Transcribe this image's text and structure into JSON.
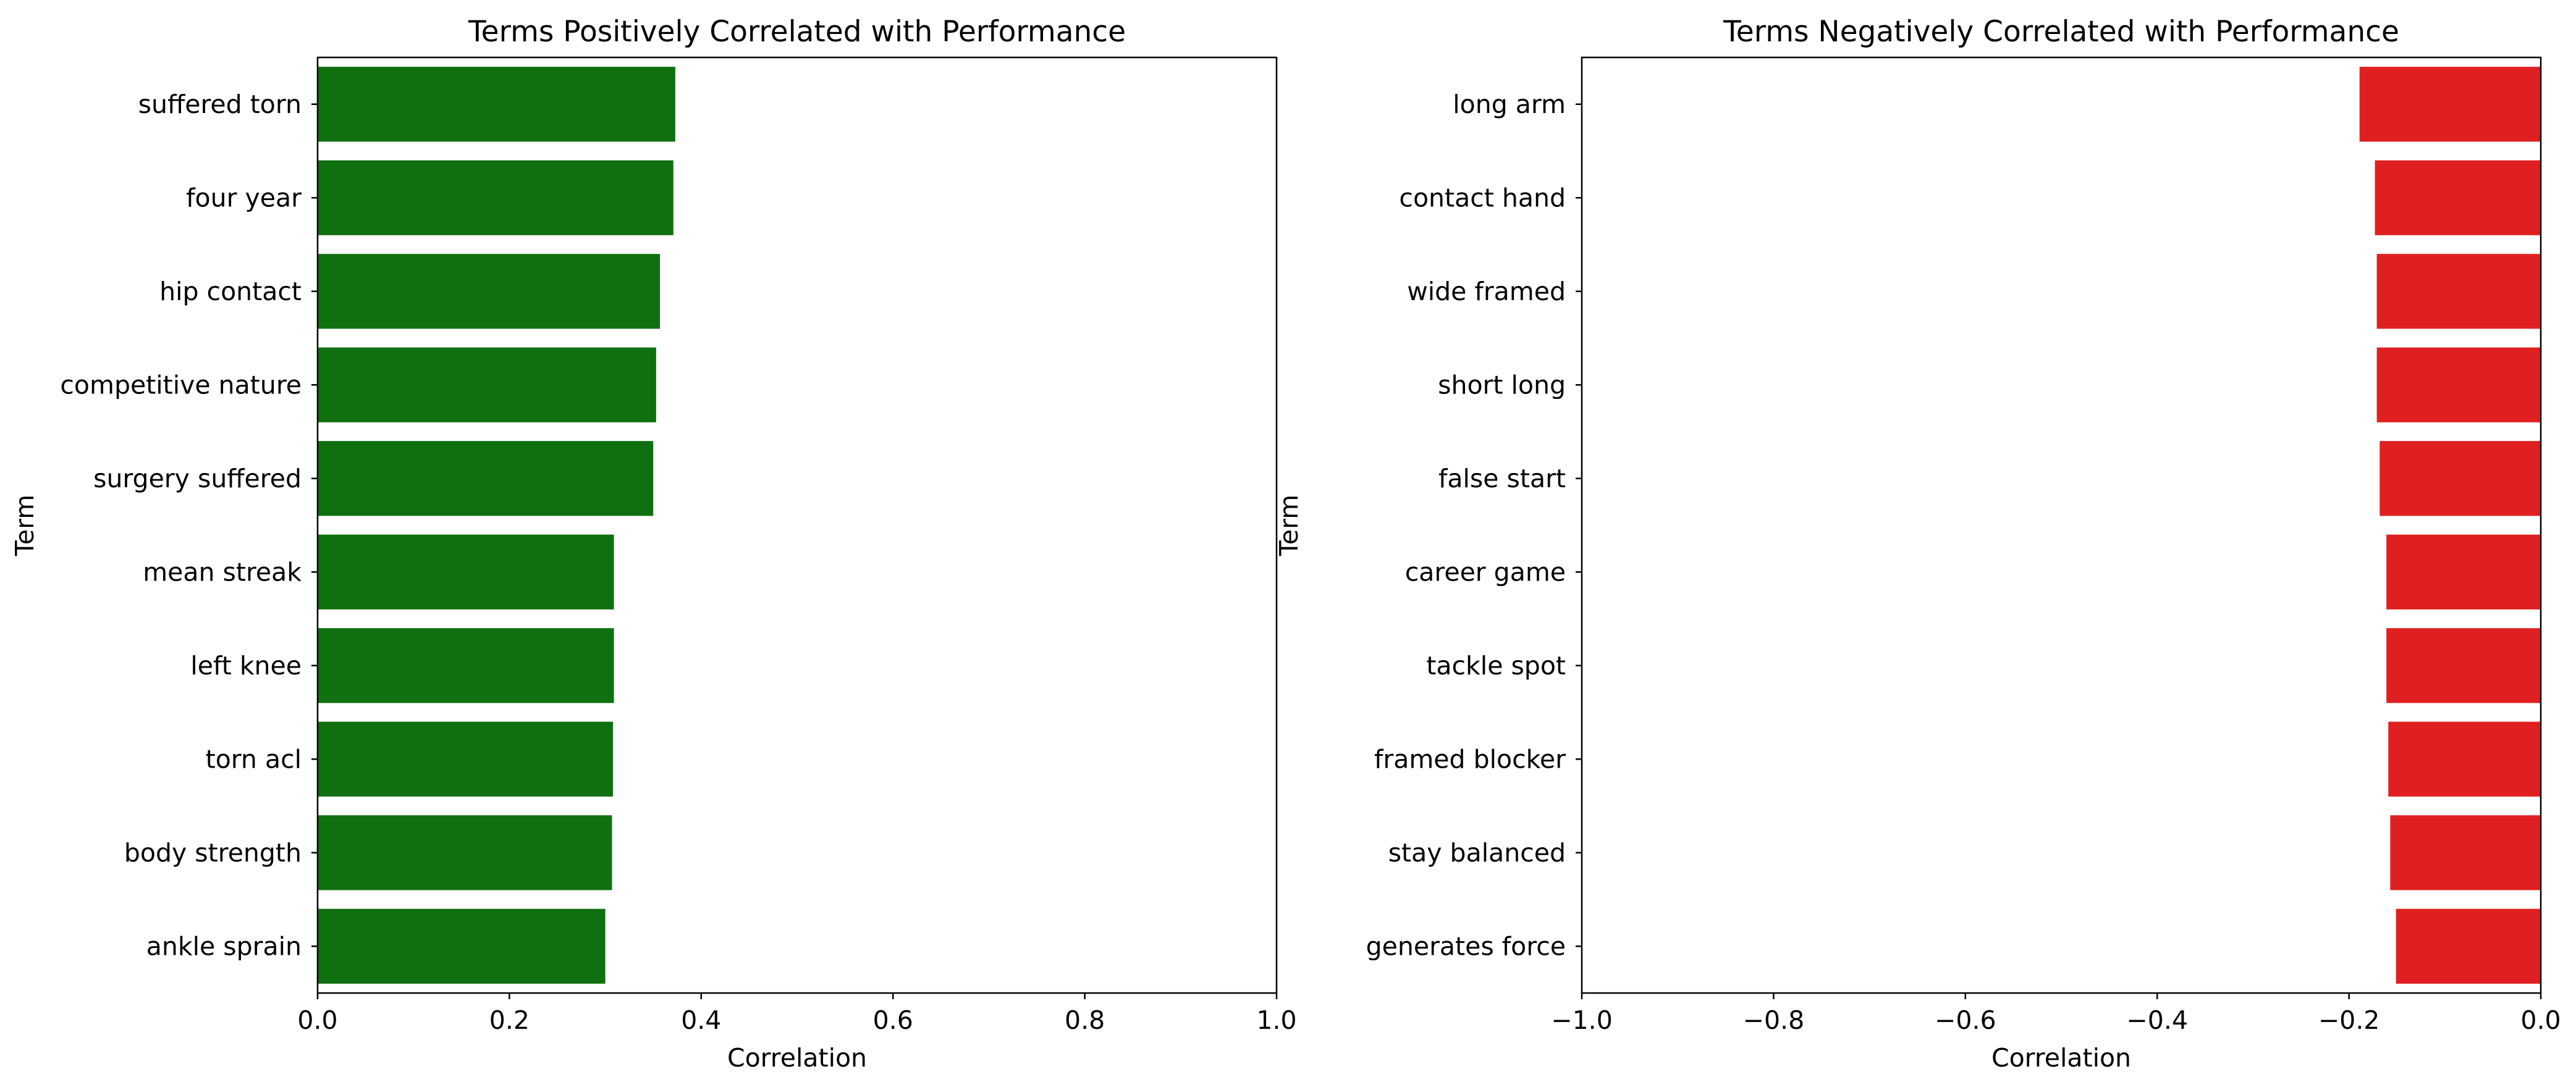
{
  "chart_data": [
    {
      "type": "bar",
      "orientation": "horizontal",
      "title": "Terms Positively Correlated with Performance",
      "xlabel": "Correlation",
      "ylabel": "Term",
      "xlim": [
        0.0,
        1.0
      ],
      "xticks": [
        0.0,
        0.2,
        0.4,
        0.6,
        0.8,
        1.0
      ],
      "xtick_labels": [
        "0.0",
        "0.2",
        "0.4",
        "0.6",
        "0.8",
        "1.0"
      ],
      "bar_color": "#107010",
      "grid": false,
      "categories": [
        "suffered torn",
        "four year",
        "hip contact",
        "competitive nature",
        "surgery suffered",
        "mean streak",
        "left knee",
        "torn acl",
        "body strength",
        "ankle sprain"
      ],
      "values": [
        0.373,
        0.371,
        0.357,
        0.353,
        0.35,
        0.309,
        0.309,
        0.308,
        0.307,
        0.3
      ]
    },
    {
      "type": "bar",
      "orientation": "horizontal",
      "title": "Terms Negatively Correlated with Performance",
      "xlabel": "Correlation",
      "ylabel": "Term",
      "xlim": [
        -1.0,
        0.0
      ],
      "xticks": [
        -1.0,
        -0.8,
        -0.6,
        -0.4,
        -0.2,
        0.0
      ],
      "xtick_labels": [
        "−1.0",
        "−0.8",
        "−0.6",
        "−0.4",
        "−0.2",
        "0.0"
      ],
      "bar_color": "#e02020",
      "grid": false,
      "categories": [
        "long arm",
        "contact hand",
        "wide framed",
        "short long",
        "false start",
        "career game",
        "tackle spot",
        "framed blocker",
        "stay balanced",
        "generates force"
      ],
      "values": [
        -0.189,
        -0.173,
        -0.171,
        -0.171,
        -0.168,
        -0.161,
        -0.161,
        -0.159,
        -0.157,
        -0.151
      ]
    }
  ]
}
